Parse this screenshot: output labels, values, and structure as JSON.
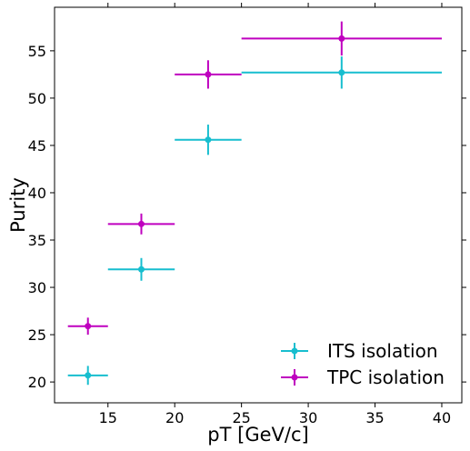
{
  "chart_data": {
    "type": "scatter",
    "xlabel": "pT [GeV/c]",
    "ylabel": "Purity",
    "xlim": [
      11.0,
      41.5
    ],
    "ylim": [
      17.8,
      59.6
    ],
    "xticks": [
      15,
      20,
      25,
      30,
      35,
      40
    ],
    "yticks": [
      20,
      25,
      30,
      35,
      40,
      45,
      50,
      55
    ],
    "grid": false,
    "legend_position": "bottom-right",
    "series": [
      {
        "name": "ITS isolation",
        "color": "#17becf",
        "points": [
          {
            "x": 13.5,
            "y": 20.7,
            "xlo": 12.0,
            "xhi": 15.0,
            "yerr": 1.0
          },
          {
            "x": 17.5,
            "y": 31.9,
            "xlo": 15.0,
            "xhi": 20.0,
            "yerr": 1.2
          },
          {
            "x": 22.5,
            "y": 45.6,
            "xlo": 20.0,
            "xhi": 25.0,
            "yerr": 1.6
          },
          {
            "x": 32.5,
            "y": 52.7,
            "xlo": 25.0,
            "xhi": 40.0,
            "yerr": 1.7
          }
        ]
      },
      {
        "name": "TPC isolation",
        "color": "#bf00bf",
        "points": [
          {
            "x": 13.5,
            "y": 25.9,
            "xlo": 12.0,
            "xhi": 15.0,
            "yerr": 0.9
          },
          {
            "x": 17.5,
            "y": 36.7,
            "xlo": 15.0,
            "xhi": 20.0,
            "yerr": 1.1
          },
          {
            "x": 22.5,
            "y": 52.5,
            "xlo": 20.0,
            "xhi": 25.0,
            "yerr": 1.5
          },
          {
            "x": 32.5,
            "y": 56.3,
            "xlo": 25.0,
            "xhi": 40.0,
            "yerr": 1.8
          }
        ]
      }
    ]
  }
}
